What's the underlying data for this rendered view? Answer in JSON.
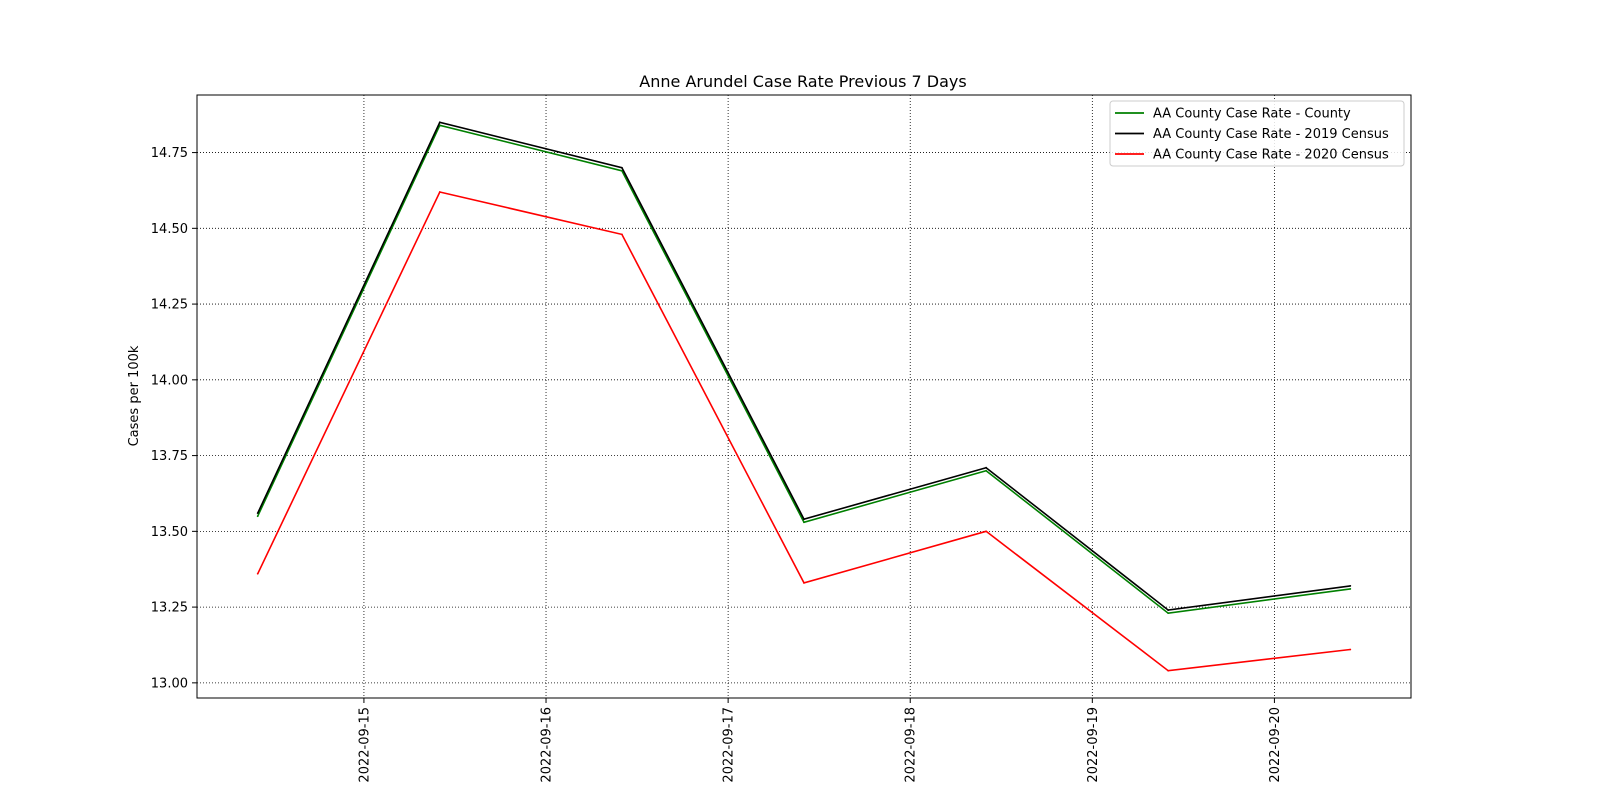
{
  "chart_data": {
    "type": "line",
    "title": "Anne Arundel Case Rate Previous 7 Days",
    "xlabel": "",
    "ylabel": "Cases per 100k",
    "x": [
      "2022-09-14 10:00",
      "2022-09-15 10:00",
      "2022-09-16 10:00",
      "2022-09-17 10:00",
      "2022-09-18 10:00",
      "2022-09-19 10:00",
      "2022-09-20 10:00"
    ],
    "x_ticks": [
      "2022-09-15",
      "2022-09-16",
      "2022-09-17",
      "2022-09-18",
      "2022-09-19",
      "2022-09-20"
    ],
    "xlim": [
      "2022-09-14 02:00",
      "2022-09-20 18:00"
    ],
    "y_ticks": [
      "13.00",
      "13.25",
      "13.50",
      "13.75",
      "14.00",
      "14.25",
      "14.50",
      "14.75"
    ],
    "ylim": [
      12.95,
      14.94
    ],
    "grid": true,
    "grid_style": "dotted",
    "legend_position": "top-right",
    "series": [
      {
        "name": "AA County Case Rate - County",
        "color": "#008000",
        "values": [
          13.55,
          14.84,
          14.69,
          13.53,
          13.7,
          13.23,
          13.31
        ]
      },
      {
        "name": "AA County Case Rate - 2019 Census",
        "color": "#000000",
        "values": [
          13.56,
          14.85,
          14.7,
          13.54,
          13.71,
          13.24,
          13.32
        ]
      },
      {
        "name": "AA County Case Rate - 2020 Census",
        "color": "#ff0000",
        "values": [
          13.36,
          14.62,
          14.48,
          13.33,
          13.5,
          13.04,
          13.11
        ]
      }
    ]
  }
}
